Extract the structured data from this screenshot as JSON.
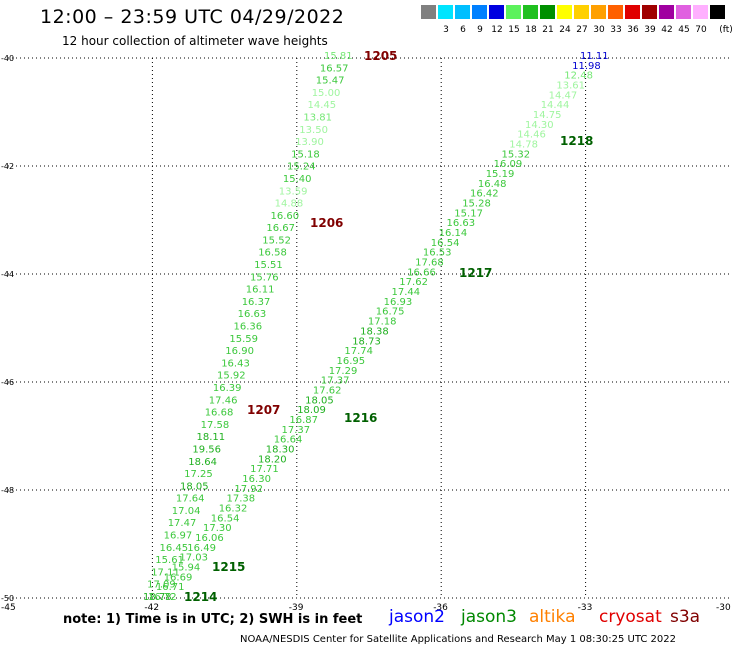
{
  "header": {
    "title": "12:00 – 23:59 UTC 04/29/2022",
    "subtitle": "12 hour collection of altimeter wave heights"
  },
  "legend": {
    "unit": "(ft)",
    "swatches": [
      {
        "color": "#808080",
        "label": ""
      },
      {
        "color": "#00e5ff",
        "label": "3"
      },
      {
        "color": "#00bfff",
        "label": "6"
      },
      {
        "color": "#0080ff",
        "label": "9"
      },
      {
        "color": "#0000e0",
        "label": "12"
      },
      {
        "color": "#5cf25c",
        "label": "15"
      },
      {
        "color": "#20c020",
        "label": "18"
      },
      {
        "color": "#009000",
        "label": "21"
      },
      {
        "color": "#ffff00",
        "label": "24"
      },
      {
        "color": "#ffd000",
        "label": "27"
      },
      {
        "color": "#ffa000",
        "label": "30"
      },
      {
        "color": "#ff6000",
        "label": "33"
      },
      {
        "color": "#e00000",
        "label": "36"
      },
      {
        "color": "#a00000",
        "label": "39"
      },
      {
        "color": "#a000a0",
        "label": "42"
      },
      {
        "color": "#e060e0",
        "label": "45"
      },
      {
        "color": "#ffb0ff",
        "label": "70"
      },
      {
        "color": "#000000",
        "label": ""
      }
    ]
  },
  "map": {
    "y_labels": [
      "-40",
      "-42",
      "-44",
      "-46",
      "-48",
      "-50"
    ],
    "x_labels": [
      "-45",
      "-42",
      "-39",
      "-36",
      "-33",
      "-30"
    ],
    "lat_range": [
      -50,
      -40
    ],
    "lon_range": [
      -45,
      -30
    ],
    "grid": "dotted",
    "track_a": [
      {
        "v": "15.81",
        "c": "#76e876"
      },
      {
        "v": "16.57",
        "c": "#3cc83c"
      },
      {
        "v": "15.47",
        "c": "#3cc83c"
      },
      {
        "v": "15.00",
        "c": "#a0f5a0"
      },
      {
        "v": "14.45",
        "c": "#a0f5a0"
      },
      {
        "v": "13.81",
        "c": "#76e876"
      },
      {
        "v": "13.50",
        "c": "#a0f5a0"
      },
      {
        "v": "13.90",
        "c": "#a0f5a0"
      },
      {
        "v": "15.18",
        "c": "#3cc83c"
      },
      {
        "v": "15.24",
        "c": "#3cc83c"
      },
      {
        "v": "15.40",
        "c": "#3cc83c"
      },
      {
        "v": "13.59",
        "c": "#a0f5a0"
      },
      {
        "v": "14.88",
        "c": "#a0f5a0"
      },
      {
        "v": "16.60",
        "c": "#3cc83c"
      },
      {
        "v": "16.67",
        "c": "#3cc83c"
      },
      {
        "v": "15.52",
        "c": "#3cc83c"
      },
      {
        "v": "16.58",
        "c": "#3cc83c"
      },
      {
        "v": "15.51",
        "c": "#3cc83c"
      },
      {
        "v": "15.76",
        "c": "#3cc83c"
      },
      {
        "v": "16.11",
        "c": "#3cc83c"
      },
      {
        "v": "16.37",
        "c": "#3cc83c"
      },
      {
        "v": "16.63",
        "c": "#3cc83c"
      },
      {
        "v": "16.36",
        "c": "#3cc83c"
      },
      {
        "v": "15.59",
        "c": "#3cc83c"
      },
      {
        "v": "16.90",
        "c": "#3cc83c"
      },
      {
        "v": "16.43",
        "c": "#3cc83c"
      },
      {
        "v": "15.92",
        "c": "#3cc83c"
      },
      {
        "v": "16.39",
        "c": "#3cc83c"
      },
      {
        "v": "17.46",
        "c": "#3cc83c"
      },
      {
        "v": "16.68",
        "c": "#3cc83c"
      },
      {
        "v": "17.58",
        "c": "#3cc83c"
      },
      {
        "v": "18.11",
        "c": "#20b020"
      },
      {
        "v": "19.56",
        "c": "#20b020"
      },
      {
        "v": "18.64",
        "c": "#20b020"
      },
      {
        "v": "17.25",
        "c": "#3cc83c"
      },
      {
        "v": "18.05",
        "c": "#20b020"
      },
      {
        "v": "17.64",
        "c": "#3cc83c"
      },
      {
        "v": "17.04",
        "c": "#3cc83c"
      },
      {
        "v": "17.47",
        "c": "#3cc83c"
      },
      {
        "v": "16.97",
        "c": "#3cc83c"
      },
      {
        "v": "16.45",
        "c": "#3cc83c"
      },
      {
        "v": "15.61",
        "c": "#3cc83c"
      },
      {
        "v": "17.11",
        "c": "#3cc83c"
      },
      {
        "v": "17.09",
        "c": "#3cc83c"
      },
      {
        "v": "18.78",
        "c": "#20b020"
      }
    ],
    "track_b": [
      {
        "v": "11.11",
        "c": "#0000d0"
      },
      {
        "v": "11.98",
        "c": "#0000d0"
      },
      {
        "v": "12.48",
        "c": "#76e876"
      },
      {
        "v": "13.61",
        "c": "#a0f5a0"
      },
      {
        "v": "14.47",
        "c": "#a0f5a0"
      },
      {
        "v": "14.44",
        "c": "#a0f5a0"
      },
      {
        "v": "14.75",
        "c": "#a0f5a0"
      },
      {
        "v": "14.30",
        "c": "#a0f5a0"
      },
      {
        "v": "14.46",
        "c": "#a0f5a0"
      },
      {
        "v": "14.78",
        "c": "#a0f5a0"
      },
      {
        "v": "15.32",
        "c": "#3cc83c"
      },
      {
        "v": "16.09",
        "c": "#3cc83c"
      },
      {
        "v": "15.19",
        "c": "#3cc83c"
      },
      {
        "v": "16.48",
        "c": "#3cc83c"
      },
      {
        "v": "16.42",
        "c": "#3cc83c"
      },
      {
        "v": "15.28",
        "c": "#3cc83c"
      },
      {
        "v": "15.17",
        "c": "#3cc83c"
      },
      {
        "v": "16.63",
        "c": "#3cc83c"
      },
      {
        "v": "16.14",
        "c": "#3cc83c"
      },
      {
        "v": "16.54",
        "c": "#3cc83c"
      },
      {
        "v": "16.53",
        "c": "#3cc83c"
      },
      {
        "v": "17.68",
        "c": "#3cc83c"
      },
      {
        "v": "16.66",
        "c": "#3cc83c"
      },
      {
        "v": "17.62",
        "c": "#3cc83c"
      },
      {
        "v": "17.44",
        "c": "#3cc83c"
      },
      {
        "v": "16.93",
        "c": "#3cc83c"
      },
      {
        "v": "16.75",
        "c": "#3cc83c"
      },
      {
        "v": "17.18",
        "c": "#3cc83c"
      },
      {
        "v": "18.38",
        "c": "#20b020"
      },
      {
        "v": "18.73",
        "c": "#20b020"
      },
      {
        "v": "17.74",
        "c": "#3cc83c"
      },
      {
        "v": "16.95",
        "c": "#3cc83c"
      },
      {
        "v": "17.29",
        "c": "#3cc83c"
      },
      {
        "v": "17.37",
        "c": "#3cc83c"
      },
      {
        "v": "17.62",
        "c": "#3cc83c"
      },
      {
        "v": "18.05",
        "c": "#20b020"
      },
      {
        "v": "18.09",
        "c": "#20b020"
      },
      {
        "v": "16.87",
        "c": "#3cc83c"
      },
      {
        "v": "17.37",
        "c": "#3cc83c"
      },
      {
        "v": "16.64",
        "c": "#3cc83c"
      },
      {
        "v": "18.30",
        "c": "#20b020"
      },
      {
        "v": "18.20",
        "c": "#20b020"
      },
      {
        "v": "17.71",
        "c": "#3cc83c"
      },
      {
        "v": "16.30",
        "c": "#3cc83c"
      },
      {
        "v": "17.92",
        "c": "#3cc83c"
      },
      {
        "v": "17.38",
        "c": "#3cc83c"
      },
      {
        "v": "16.32",
        "c": "#3cc83c"
      },
      {
        "v": "16.54",
        "c": "#3cc83c"
      },
      {
        "v": "17.30",
        "c": "#3cc83c"
      },
      {
        "v": "16.06",
        "c": "#3cc83c"
      },
      {
        "v": "16.49",
        "c": "#3cc83c"
      },
      {
        "v": "17.03",
        "c": "#3cc83c"
      },
      {
        "v": "15.94",
        "c": "#3cc83c"
      },
      {
        "v": "16.69",
        "c": "#3cc83c"
      },
      {
        "v": "16.71",
        "c": "#3cc83c"
      },
      {
        "v": "16.72",
        "c": "#3cc83c"
      }
    ],
    "pass_labels": [
      {
        "text": "1205",
        "c": "#800000"
      },
      {
        "text": "1206",
        "c": "#800000"
      },
      {
        "text": "1207",
        "c": "#800000"
      },
      {
        "text": "1218",
        "c": "#006000"
      },
      {
        "text": "1217",
        "c": "#006000"
      },
      {
        "text": "1216",
        "c": "#006000"
      },
      {
        "text": "1215",
        "c": "#006000"
      },
      {
        "text": "1214",
        "c": "#006000"
      }
    ]
  },
  "footer": {
    "note": "note:  1) Time is in UTC;  2) SWH is in feet",
    "satellites": [
      {
        "name": "jason2",
        "color": "#0000ff"
      },
      {
        "name": "jason3",
        "color": "#008800"
      },
      {
        "name": "altika",
        "color": "#ff8000"
      },
      {
        "name": "cryosat",
        "color": "#e00000"
      },
      {
        "name": "s3a",
        "color": "#800000"
      }
    ],
    "credit": "NOAA/NESDIS Center for Satellite Applications and Research    May  1 08:30:25 UTC 2022"
  }
}
